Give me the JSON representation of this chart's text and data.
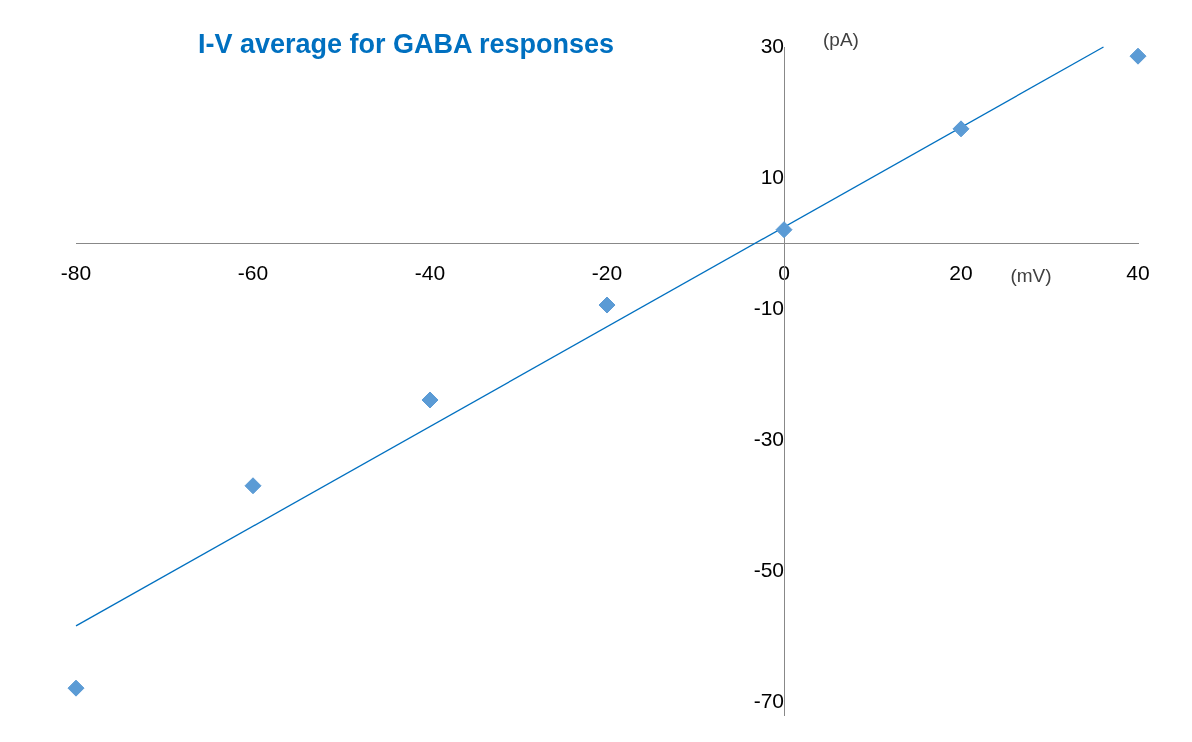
{
  "chart_data": {
    "type": "scatter",
    "title": "I-V average for GABA responses",
    "xlabel": "(mV)",
    "ylabel": "(pA)",
    "xlim": [
      -80,
      40
    ],
    "xticks": [
      -80,
      -60,
      -40,
      -20,
      0,
      20,
      40
    ],
    "ylim": [
      -72,
      30
    ],
    "yticks": [
      -70,
      -50,
      -30,
      -10,
      10,
      30
    ],
    "grid": false,
    "legend": false,
    "series": [
      {
        "marker": "diamond",
        "color": "#5b9bd5",
        "x": [
          -80,
          -60,
          -40,
          -20,
          0,
          20,
          40
        ],
        "values": [
          -67.9,
          -37.0,
          -23.9,
          -9.4,
          2.1,
          17.5,
          28.6
        ]
      },
      {
        "type": "line",
        "marker": "none",
        "color": "#0070c0",
        "x": [
          -80,
          36.1
        ],
        "values": [
          -58.4,
          30
        ]
      }
    ]
  }
}
